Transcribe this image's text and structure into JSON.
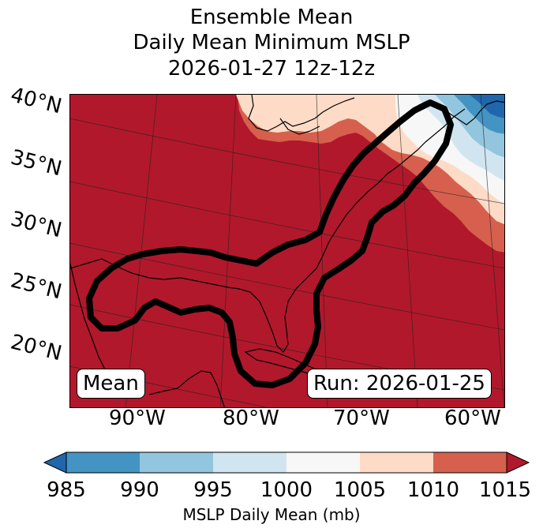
{
  "title": {
    "line1": "Ensemble Mean",
    "line2": "Daily Mean Minimum MSLP",
    "line3": "2026-01-27 12z-12z"
  },
  "map": {
    "lat_labels": [
      "40°N",
      "35°N",
      "30°N",
      "25°N",
      "20°N"
    ],
    "lon_labels": [
      "90°W",
      "80°W",
      "70°W",
      "60°W"
    ],
    "mean_label": "Mean",
    "run_label": "Run: 2026-01-25",
    "field_description_levels_mb": [
      1015,
      1010,
      1005,
      1000,
      995,
      990,
      985
    ],
    "contour_color": "#000000"
  },
  "colorbar": {
    "label": "MSLP Daily Mean (mb)",
    "ticks": [
      "985",
      "990",
      "995",
      "1000",
      "1005",
      "1010",
      "1015"
    ],
    "colors": [
      "#2066ac",
      "#4393c3",
      "#92c5de",
      "#d1e5f0",
      "#f7f7f7",
      "#fddbc7",
      "#d6604d",
      "#b2182b"
    ]
  }
}
